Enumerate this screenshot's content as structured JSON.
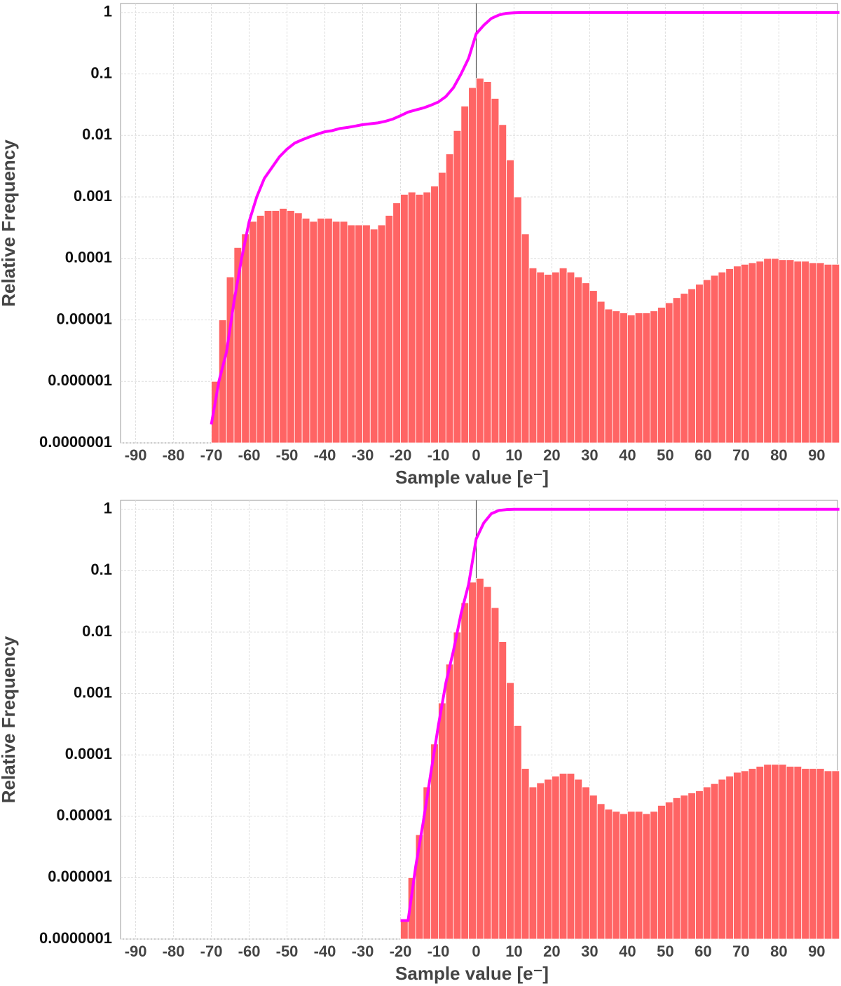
{
  "chart_data": [
    {
      "type": "histogram",
      "xlabel": "Sample value [e⁻]",
      "ylabel": "Relative Frequency",
      "log_y": true,
      "grid": true,
      "xlim": [
        -94,
        95.5
      ],
      "ylim": [
        1e-07,
        1.4
      ],
      "xticks": [
        -90,
        -80,
        -70,
        -60,
        -50,
        -40,
        -30,
        -20,
        -10,
        0,
        10,
        20,
        30,
        40,
        50,
        60,
        70,
        80,
        90
      ],
      "yticks": [
        {
          "value": 1e-07,
          "label": "0.0000001"
        },
        1e-06,
        1e-05,
        0.0001,
        0.001,
        0.01,
        0.1,
        1
      ],
      "color": "#ff6464",
      "bins": [
        -70,
        -68,
        -66,
        -64,
        -62,
        -60,
        -58,
        -56,
        -54,
        -52,
        -50,
        -48,
        -46,
        -44,
        -42,
        -40,
        -38,
        -36,
        -34,
        -32,
        -30,
        -28,
        -26,
        -24,
        -22,
        -20,
        -18,
        -16,
        -14,
        -12,
        -10,
        -8,
        -6,
        -4,
        -2,
        0,
        2,
        4,
        6,
        8,
        10,
        12,
        14,
        16,
        18,
        20,
        22,
        24,
        26,
        28,
        30,
        32,
        34,
        36,
        38,
        40,
        42,
        44,
        46,
        48,
        50,
        52,
        54,
        56,
        58,
        60,
        62,
        64,
        66,
        68,
        70,
        72,
        74,
        76,
        78,
        80,
        82,
        84,
        86,
        88,
        90,
        92,
        94,
        96
      ],
      "values": [
        1e-06,
        1e-05,
        5e-05,
        0.00015,
        0.00025,
        0.0004,
        0.0005,
        0.0006,
        0.0006,
        0.00065,
        0.0006,
        0.00055,
        0.00045,
        0.0004,
        0.00045,
        0.00045,
        0.0004,
        0.0004,
        0.00035,
        0.00035,
        0.00035,
        0.0003,
        0.00035,
        0.0005,
        0.0008,
        0.0011,
        0.0012,
        0.0011,
        0.0012,
        0.0015,
        0.0025,
        0.005,
        0.012,
        0.03,
        0.06,
        0.085,
        0.075,
        0.04,
        0.015,
        0.004,
        0.001,
        0.00025,
        7e-05,
        6e-05,
        5.5e-05,
        6e-05,
        7e-05,
        6e-05,
        5e-05,
        4e-05,
        3e-05,
        2e-05,
        1.5e-05,
        1.4e-05,
        1.3e-05,
        1.2e-05,
        1.3e-05,
        1.3e-05,
        1.4e-05,
        1.6e-05,
        1.9e-05,
        2.3e-05,
        2.7e-05,
        3.2e-05,
        3.8e-05,
        4.5e-05,
        5.3e-05,
        6e-05,
        6.8e-05,
        7.5e-05,
        8e-05,
        8.5e-05,
        9e-05,
        0.0001,
        0.0001,
        9.5e-05,
        9.5e-05,
        9e-05,
        9e-05,
        8.5e-05,
        8.5e-05,
        8e-05,
        8e-05
      ],
      "cumulative": {
        "color": "#ff00ff",
        "x": [
          -70,
          -68,
          -66,
          -64,
          -62,
          -60,
          -58,
          -56,
          -54,
          -52,
          -50,
          -48,
          -46,
          -44,
          -42,
          -40,
          -38,
          -36,
          -34,
          -32,
          -30,
          -28,
          -26,
          -24,
          -22,
          -20,
          -18,
          -16,
          -14,
          -12,
          -10,
          -8,
          -6,
          -4,
          -2,
          0,
          2,
          4,
          6,
          8,
          10,
          12,
          20,
          40,
          60,
          80,
          96
        ],
        "values": [
          2e-07,
          1e-06,
          3e-06,
          2e-05,
          0.0001,
          0.0004,
          0.001,
          0.002,
          0.003,
          0.0045,
          0.006,
          0.0075,
          0.0085,
          0.0095,
          0.0105,
          0.0115,
          0.012,
          0.013,
          0.0135,
          0.0142,
          0.015,
          0.0155,
          0.016,
          0.017,
          0.0185,
          0.021,
          0.024,
          0.026,
          0.028,
          0.031,
          0.035,
          0.043,
          0.06,
          0.1,
          0.18,
          0.45,
          0.62,
          0.8,
          0.91,
          0.97,
          0.99,
          1,
          1,
          1,
          1,
          1,
          1
        ]
      }
    },
    {
      "type": "histogram",
      "xlabel": "Sample value [e⁻]",
      "ylabel": "Relative Frequency",
      "log_y": true,
      "grid": true,
      "xlim": [
        -94,
        95.5
      ],
      "ylim": [
        1e-07,
        1.4
      ],
      "xticks": [
        -90,
        -80,
        -70,
        -60,
        -50,
        -40,
        -30,
        -20,
        -10,
        0,
        10,
        20,
        30,
        40,
        50,
        60,
        70,
        80,
        90
      ],
      "yticks": [
        {
          "value": 1e-07,
          "label": "0.0000001"
        },
        1e-06,
        1e-05,
        0.0001,
        0.001,
        0.01,
        0.1,
        1
      ],
      "color": "#ff6464",
      "bins": [
        -20,
        -18,
        -16,
        -14,
        -12,
        -10,
        -8,
        -6,
        -4,
        -2,
        0,
        2,
        4,
        6,
        8,
        10,
        12,
        14,
        16,
        18,
        20,
        22,
        24,
        26,
        28,
        30,
        32,
        34,
        36,
        38,
        40,
        42,
        44,
        46,
        48,
        50,
        52,
        54,
        56,
        58,
        60,
        62,
        64,
        66,
        68,
        70,
        72,
        74,
        76,
        78,
        80,
        82,
        84,
        86,
        88,
        90,
        92,
        94,
        96
      ],
      "values": [
        2e-07,
        1e-06,
        5e-06,
        3e-05,
        0.00015,
        0.0007,
        0.003,
        0.01,
        0.03,
        0.065,
        0.075,
        0.055,
        0.025,
        0.007,
        0.0015,
        0.0003,
        6e-05,
        3e-05,
        3.5e-05,
        4e-05,
        4.5e-05,
        5e-05,
        5e-05,
        4e-05,
        3e-05,
        2.2e-05,
        1.6e-05,
        1.3e-05,
        1.2e-05,
        1.1e-05,
        1.2e-05,
        1.2e-05,
        1.1e-05,
        1.2e-05,
        1.5e-05,
        1.7e-05,
        2e-05,
        2.2e-05,
        2.4e-05,
        2.6e-05,
        3e-05,
        3.4e-05,
        4e-05,
        4.5e-05,
        5.2e-05,
        5.5e-05,
        6e-05,
        6.5e-05,
        7e-05,
        7e-05,
        7e-05,
        6.5e-05,
        6.5e-05,
        6e-05,
        6e-05,
        6e-05,
        5.5e-05,
        5.5e-05
      ],
      "cumulative": {
        "color": "#ff00ff",
        "x": [
          -20,
          -18,
          -16,
          -14,
          -12,
          -10,
          -8,
          -6,
          -4,
          -2,
          0,
          2,
          4,
          6,
          8,
          10,
          20,
          40,
          60,
          80,
          96
        ],
        "values": [
          2e-07,
          2e-07,
          1.5e-06,
          8e-06,
          5e-05,
          0.0003,
          0.0015,
          0.005,
          0.02,
          0.06,
          0.33,
          0.6,
          0.85,
          0.96,
          0.99,
          1,
          1,
          1,
          1,
          1,
          1
        ]
      }
    }
  ]
}
